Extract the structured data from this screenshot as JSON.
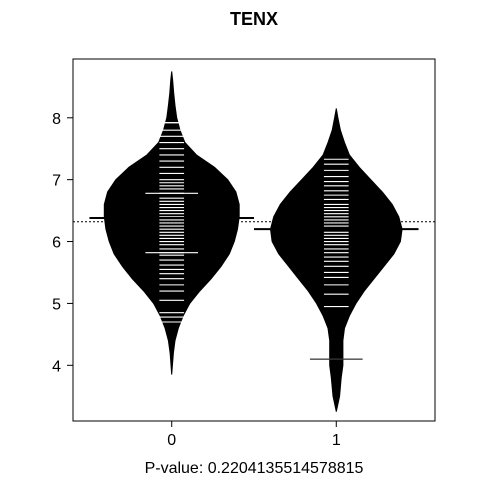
{
  "chart_data": {
    "type": "beanplot",
    "title": "TENX",
    "xlabel": "P-value: 0.2204135514578815",
    "ylabel": "",
    "categories": [
      "0",
      "1"
    ],
    "x_tick_labels": [
      "0",
      "1"
    ],
    "y_ticks": [
      4,
      5,
      6,
      7,
      8
    ],
    "y_tick_labels": [
      "4",
      "5",
      "6",
      "7",
      "8"
    ],
    "ylim": [
      3.1,
      8.95
    ],
    "xlim": [
      -0.6,
      1.6
    ],
    "overall_mean": 6.32,
    "groups": [
      {
        "name": "0",
        "mean": 6.38,
        "density": [
          [
            3.85,
            0.0
          ],
          [
            4.2,
            0.01
          ],
          [
            4.4,
            0.02
          ],
          [
            4.6,
            0.04
          ],
          [
            4.8,
            0.07
          ],
          [
            5.0,
            0.11
          ],
          [
            5.2,
            0.17
          ],
          [
            5.4,
            0.24
          ],
          [
            5.6,
            0.3
          ],
          [
            5.8,
            0.35
          ],
          [
            6.0,
            0.38
          ],
          [
            6.2,
            0.4
          ],
          [
            6.4,
            0.41
          ],
          [
            6.6,
            0.41
          ],
          [
            6.8,
            0.39
          ],
          [
            7.0,
            0.34
          ],
          [
            7.2,
            0.26
          ],
          [
            7.4,
            0.15
          ],
          [
            7.6,
            0.08
          ],
          [
            7.8,
            0.05
          ],
          [
            8.0,
            0.03
          ],
          [
            8.2,
            0.02
          ],
          [
            8.4,
            0.012
          ],
          [
            8.6,
            0.006
          ],
          [
            8.75,
            0.0
          ]
        ],
        "observations": [
          4.7,
          4.78,
          4.85,
          5.05,
          5.2,
          5.3,
          5.4,
          5.48,
          5.55,
          5.62,
          5.7,
          5.78,
          5.82,
          5.88,
          5.95,
          6.0,
          6.05,
          6.1,
          6.15,
          6.2,
          6.25,
          6.3,
          6.35,
          6.4,
          6.45,
          6.5,
          6.55,
          6.6,
          6.65,
          6.7,
          6.78,
          6.85,
          6.9,
          6.95,
          7.0,
          7.1,
          7.2,
          7.3,
          7.4,
          7.5,
          7.6,
          7.7,
          7.8,
          7.92
        ],
        "long_line_observations": [
          5.82,
          6.78,
          7.92
        ]
      },
      {
        "name": "1",
        "mean": 6.2,
        "density": [
          [
            3.25,
            0.0
          ],
          [
            3.5,
            0.02
          ],
          [
            3.8,
            0.03
          ],
          [
            4.0,
            0.04
          ],
          [
            4.2,
            0.04
          ],
          [
            4.4,
            0.04
          ],
          [
            4.6,
            0.05
          ],
          [
            4.8,
            0.08
          ],
          [
            5.0,
            0.12
          ],
          [
            5.2,
            0.17
          ],
          [
            5.4,
            0.23
          ],
          [
            5.6,
            0.29
          ],
          [
            5.8,
            0.35
          ],
          [
            6.0,
            0.39
          ],
          [
            6.2,
            0.4
          ],
          [
            6.4,
            0.38
          ],
          [
            6.6,
            0.34
          ],
          [
            6.8,
            0.28
          ],
          [
            7.0,
            0.21
          ],
          [
            7.2,
            0.14
          ],
          [
            7.4,
            0.08
          ],
          [
            7.6,
            0.05
          ],
          [
            7.8,
            0.025
          ],
          [
            8.0,
            0.01
          ],
          [
            8.15,
            0.0
          ]
        ],
        "observations": [
          4.1,
          4.95,
          5.15,
          5.3,
          5.42,
          5.5,
          5.6,
          5.68,
          5.75,
          5.82,
          5.88,
          5.95,
          6.0,
          6.05,
          6.1,
          6.15,
          6.2,
          6.25,
          6.3,
          6.35,
          6.4,
          6.45,
          6.5,
          6.55,
          6.6,
          6.68,
          6.75,
          6.82,
          6.9,
          6.97,
          7.05,
          7.15,
          7.25,
          7.33
        ],
        "long_line_observations": [
          4.1
        ]
      }
    ],
    "legend": "none",
    "grid": false
  }
}
